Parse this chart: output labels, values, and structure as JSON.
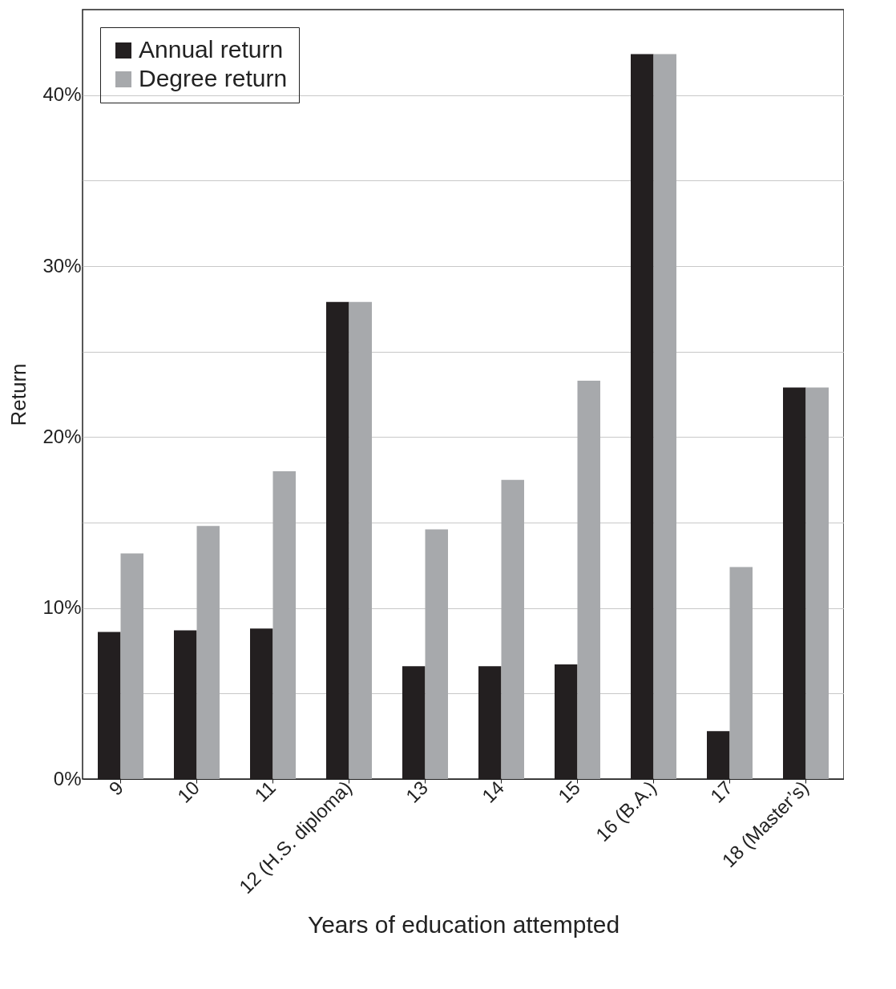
{
  "chart_data": {
    "type": "bar",
    "xlabel": "Years of education attempted",
    "ylabel": "Return",
    "categories": [
      "9",
      "10",
      "11",
      "12 (H.S. diploma)",
      "13",
      "14",
      "15",
      "16 (B.A.)",
      "17",
      "18 (Master’s)"
    ],
    "series": [
      {
        "name": "Annual return",
        "color": "#231f20",
        "values": [
          8.6,
          8.7,
          8.8,
          27.9,
          6.6,
          6.6,
          6.7,
          42.4,
          2.8,
          22.9
        ]
      },
      {
        "name": "Degree return",
        "color": "#a7a9ac",
        "values": [
          13.2,
          14.8,
          18.0,
          27.9,
          14.6,
          17.5,
          23.3,
          42.4,
          12.4,
          22.9
        ]
      }
    ],
    "ylim": [
      0,
      45
    ],
    "yticks": [
      {
        "value": 0,
        "label": "0%"
      },
      {
        "value": 5,
        "label": null
      },
      {
        "value": 10,
        "label": "10%"
      },
      {
        "value": 15,
        "label": null
      },
      {
        "value": 20,
        "label": "20%"
      },
      {
        "value": 25,
        "label": null
      },
      {
        "value": 30,
        "label": "30%"
      },
      {
        "value": 35,
        "label": null
      },
      {
        "value": 40,
        "label": "40%"
      }
    ],
    "grid": "y",
    "legend": "top left"
  }
}
